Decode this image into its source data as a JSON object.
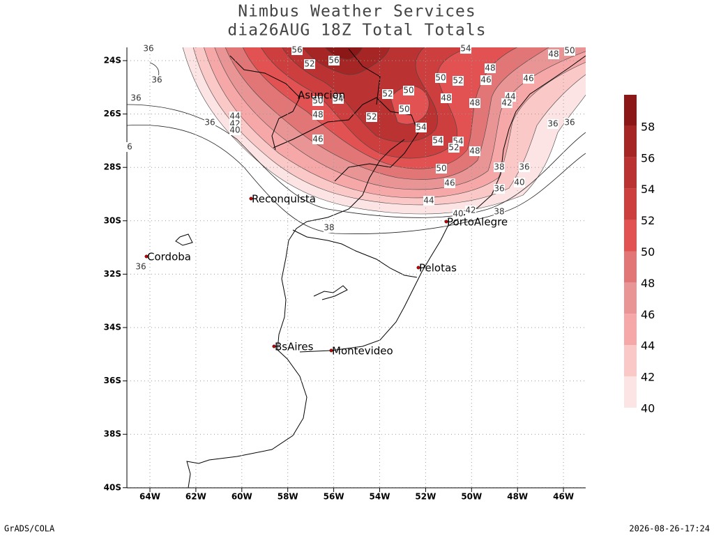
{
  "header": {
    "title": "Nimbus Weather Services",
    "subtitle": "dia26AUG 18Z Total Totals"
  },
  "map": {
    "lat_labels": [
      "24S",
      "26S",
      "28S",
      "30S",
      "32S",
      "34S",
      "36S",
      "38S",
      "40S"
    ],
    "lon_labels": [
      "64W",
      "62W",
      "60W",
      "58W",
      "56W",
      "54W",
      "52W",
      "50W",
      "48W",
      "46W"
    ],
    "cities": [
      "Asuncion",
      "Reconquista",
      "Cordoba",
      "PortoAlegre",
      "Pelotas",
      "BsAires",
      "Montevideo"
    ],
    "contour_labels": [
      "56",
      "52",
      "56",
      "54",
      "48",
      "50",
      "48",
      "46",
      "46",
      "50",
      "52",
      "50",
      "52",
      "50",
      "54",
      "48",
      "48",
      "44",
      "42",
      "50",
      "52",
      "48",
      "54",
      "44",
      "42",
      "40",
      "36",
      "46",
      "54",
      "54",
      "52",
      "48",
      "50",
      "38",
      "36",
      "46",
      "40",
      "36",
      "44",
      "40",
      "42",
      "38",
      "38",
      "36",
      "36",
      "36",
      "36",
      "36",
      "36",
      "6"
    ]
  },
  "colorbar": {
    "levels": [
      40,
      42,
      44,
      46,
      48,
      50,
      52,
      54,
      56,
      58
    ],
    "colors": [
      "#fde4e4",
      "#fbc8c8",
      "#f6a8a8",
      "#e99595",
      "#e27575",
      "#e25252",
      "#cd3e3e",
      "#ba3232",
      "#a62626",
      "#8c1717"
    ]
  },
  "footer": {
    "left": "GrADS/COLA",
    "right": "2026-08-26-17:24"
  }
}
